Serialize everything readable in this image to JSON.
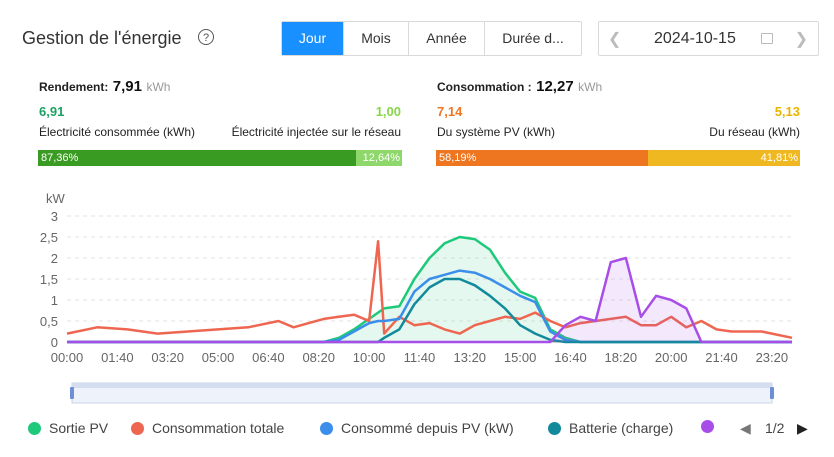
{
  "header": {
    "title": "Gestion de l'énergie",
    "help_icon": "?",
    "tabs": [
      "Jour",
      "Mois",
      "Année",
      "Durée d..."
    ],
    "active_tab": "Jour",
    "date": "2024-10-15"
  },
  "yield": {
    "label": "Rendement:",
    "value": "7,91",
    "unit": "kWh",
    "left_value": "6,91",
    "left_label": "Électricité consommée (kWh)",
    "right_value": "1,00",
    "right_label": "Électricité injectée sur le réseau",
    "left_pct": "87,36%",
    "right_pct": "12,64%",
    "left_fraction": 0.8736,
    "left_color": "#3a9b22",
    "right_color": "#8ed86b",
    "left_value_color": "#1aa262",
    "right_value_color": "#86d84a"
  },
  "consumption": {
    "label": "Consommation :",
    "value": "12,27",
    "unit": "kWh",
    "left_value": "7,14",
    "left_label": "Du système PV (kWh)",
    "right_value": "5,13",
    "right_label": "Du réseau (kWh)",
    "left_pct": "58,19%",
    "right_pct": "41,81%",
    "left_fraction": 0.5819,
    "left_color": "#ee7620",
    "right_color": "#f0b820",
    "left_value_color": "#ee7620",
    "right_value_color": "#e8b400"
  },
  "chart_data": {
    "type": "line",
    "ylabel": "kW",
    "ylim": [
      0,
      3
    ],
    "yticks": [
      "0",
      "0,5",
      "1",
      "1,5",
      "2",
      "2,5",
      "3"
    ],
    "xticks": [
      "00:00",
      "01:40",
      "03:20",
      "05:00",
      "06:40",
      "08:20",
      "10:00",
      "11:40",
      "13:20",
      "15:00",
      "16:40",
      "18:20",
      "20:00",
      "21:40",
      "23:20"
    ],
    "x_hours": [
      0,
      1,
      2,
      3,
      4,
      5,
      6,
      7,
      7.5,
      8,
      8.5,
      9,
      9.5,
      10,
      10.3,
      10.5,
      11,
      11.5,
      12,
      12.5,
      13,
      13.5,
      14,
      14.5,
      15,
      15.5,
      16,
      16.5,
      17,
      17.5,
      18,
      18.5,
      19,
      19.5,
      20,
      20.5,
      21,
      21.5,
      22,
      23,
      24
    ],
    "series": [
      {
        "name": "Sortie PV",
        "color": "#1ec97a",
        "values": [
          0,
          0,
          0,
          0,
          0,
          0,
          0,
          0,
          0,
          0,
          0,
          0.1,
          0.3,
          0.55,
          0.7,
          0.8,
          0.85,
          1.5,
          2.0,
          2.35,
          2.5,
          2.45,
          2.2,
          1.65,
          1.2,
          1.05,
          0.3,
          0.1,
          0,
          0,
          0,
          0,
          0,
          0,
          0,
          0,
          0,
          0,
          0,
          0,
          0
        ]
      },
      {
        "name": "Consommation totale",
        "color": "#ee6650",
        "values": [
          0.2,
          0.35,
          0.3,
          0.2,
          0.25,
          0.3,
          0.35,
          0.5,
          0.35,
          0.45,
          0.55,
          0.6,
          0.65,
          0.5,
          2.4,
          0.2,
          0.6,
          0.4,
          0.45,
          0.3,
          0.2,
          0.4,
          0.5,
          0.6,
          0.55,
          0.7,
          0.5,
          0.35,
          0.45,
          0.5,
          0.55,
          0.6,
          0.4,
          0.4,
          0.6,
          0.35,
          0.5,
          0.3,
          0.25,
          0.25,
          0.1
        ]
      },
      {
        "name": "Consommé depuis PV (kW)",
        "color": "#3b8eea",
        "values": [
          0,
          0,
          0,
          0,
          0,
          0,
          0,
          0,
          0,
          0,
          0,
          0.05,
          0.25,
          0.45,
          0.5,
          0.5,
          0.55,
          1.2,
          1.5,
          1.6,
          1.7,
          1.65,
          1.5,
          1.3,
          1.1,
          0.95,
          0.25,
          0.05,
          0,
          0,
          0,
          0,
          0,
          0,
          0,
          0,
          0,
          0,
          0,
          0,
          0
        ]
      },
      {
        "name": "Batterie (charge)",
        "color": "#138a9b",
        "values": [
          0,
          0,
          0,
          0,
          0,
          0,
          0,
          0,
          0,
          0,
          0,
          0,
          0,
          0,
          0,
          0.1,
          0.3,
          0.9,
          1.3,
          1.5,
          1.5,
          1.35,
          1.1,
          0.8,
          0.4,
          0.2,
          0.05,
          0,
          0,
          0,
          0,
          0,
          0,
          0,
          0,
          0,
          0,
          0,
          0,
          0,
          0
        ]
      },
      {
        "name": "",
        "color": "#a84ee8",
        "values": [
          0,
          0,
          0,
          0,
          0,
          0,
          0,
          0,
          0,
          0,
          0,
          0,
          0,
          0,
          0,
          0,
          0,
          0,
          0,
          0,
          0,
          0,
          0,
          0,
          0,
          0,
          0,
          0.4,
          0.6,
          0.5,
          1.9,
          2.0,
          0.6,
          1.1,
          1.0,
          0.8,
          0,
          0,
          0,
          0,
          0
        ]
      }
    ]
  },
  "legend": {
    "items": [
      {
        "label": "Sortie PV",
        "color": "#1ec97a"
      },
      {
        "label": "Consommation totale",
        "color": "#ee6650"
      },
      {
        "label": "Consommé depuis PV (kW)",
        "color": "#3b8eea"
      },
      {
        "label": "Batterie (charge)",
        "color": "#138a9b"
      },
      {
        "label": "",
        "color": "#a84ee8"
      }
    ],
    "page": "1/2"
  }
}
